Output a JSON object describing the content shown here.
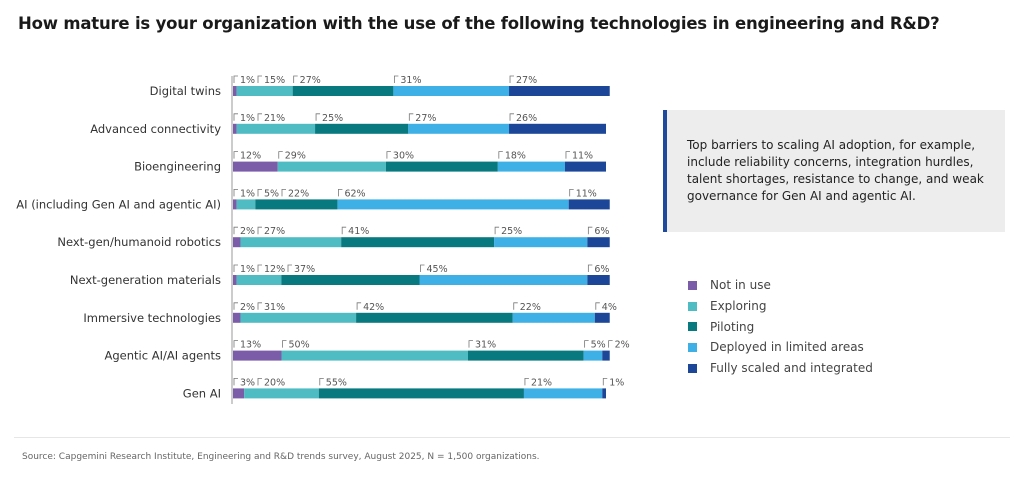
{
  "title": "How mature is your organization with the use of the following technologies in engineering and R&D?",
  "chart_data": {
    "type": "bar",
    "orientation": "horizontal",
    "stacked": true,
    "title": "How mature is your organization with the use of the following technologies in engineering and R&D?",
    "categories": [
      "Digital twins",
      "Advanced connectivity",
      "Bioengineering",
      "AI (including Gen AI and agentic AI)",
      "Next-gen/humanoid robotics",
      "Next-generation materials",
      "Immersive technologies",
      "Agentic AI/AI agents",
      "Gen AI"
    ],
    "series": [
      {
        "name": "Not in use",
        "color": "#7b5ca8",
        "values": [
          1,
          1,
          12,
          1,
          2,
          1,
          2,
          13,
          3
        ]
      },
      {
        "name": "Exploring",
        "color": "#4fbcc3",
        "values": [
          15,
          21,
          29,
          5,
          27,
          12,
          31,
          50,
          20
        ]
      },
      {
        "name": "Piloting",
        "color": "#08797f",
        "values": [
          27,
          25,
          30,
          22,
          41,
          37,
          42,
          31,
          55
        ]
      },
      {
        "name": "Deployed in limited areas",
        "color": "#3fb0e6",
        "values": [
          31,
          27,
          18,
          62,
          25,
          45,
          22,
          5,
          21
        ]
      },
      {
        "name": "Fully scaled and integrated",
        "color": "#1c4799",
        "values": [
          27,
          26,
          11,
          11,
          6,
          6,
          4,
          2,
          1
        ]
      }
    ],
    "unit": "%",
    "legend_position": "right"
  },
  "callout": "Top barriers to scaling AI adoption, for example, include reliability concerns, integration hurdles, talent shortages, resistance to change, and weak governance for Gen AI and agentic AI.",
  "legend": [
    "Not in use",
    "Exploring",
    "Piloting",
    "Deployed in limited areas",
    "Fully scaled and integrated"
  ],
  "source": "Source: Capgemini Research Institute, Engineering and R&D trends survey, August 2025, N = 1,500 organizations."
}
